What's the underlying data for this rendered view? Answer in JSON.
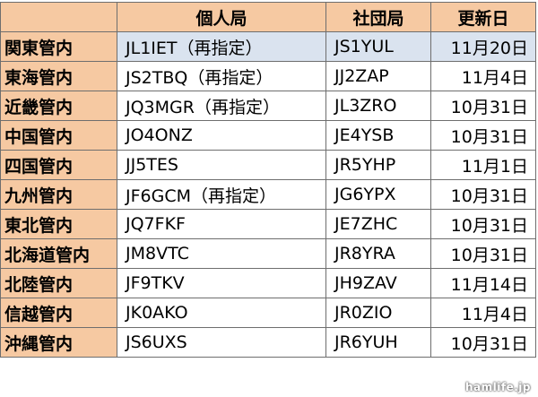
{
  "header": {
    "corner": "",
    "personal": "個人局",
    "club": "社団局",
    "date": "更新日"
  },
  "rows": [
    {
      "region": "関東管内",
      "personal": "JL1IET（再指定）",
      "club": "JS1YUL",
      "date": "11月20日"
    },
    {
      "region": "東海管内",
      "personal": "JS2TBQ（再指定）",
      "club": "JJ2ZAP",
      "date": "11月4日"
    },
    {
      "region": "近畿管内",
      "personal": "JQ3MGR（再指定）",
      "club": "JL3ZRO",
      "date": "10月31日"
    },
    {
      "region": "中国管内",
      "personal": "JO4ONZ",
      "club": "JE4YSB",
      "date": "10月31日"
    },
    {
      "region": "四国管内",
      "personal": "JJ5TES",
      "club": "JR5YHP",
      "date": "11月1日"
    },
    {
      "region": "九州管内",
      "personal": "JF6GCM（再指定）",
      "club": "JG6YPX",
      "date": "10月31日"
    },
    {
      "region": "東北管内",
      "personal": "JQ7FKF",
      "club": "JE7ZHC",
      "date": "10月31日"
    },
    {
      "region": "北海道管内",
      "personal": "JM8VTC",
      "club": "JR8YRA",
      "date": "10月31日"
    },
    {
      "region": "北陸管内",
      "personal": "JF9TKV",
      "club": "JH9ZAV",
      "date": "11月14日"
    },
    {
      "region": "信越管内",
      "personal": "JK0AKO",
      "club": "JR0ZIO",
      "date": "11月4日"
    },
    {
      "region": "沖縄管内",
      "personal": "JS6UXS",
      "club": "JR6YUH",
      "date": "10月31日"
    }
  ],
  "watermark": "hamlife.jp",
  "colors": {
    "header_fill": "#f6c9a2",
    "highlight_fill": "#dae3ef",
    "border": "#6e6e6e"
  }
}
